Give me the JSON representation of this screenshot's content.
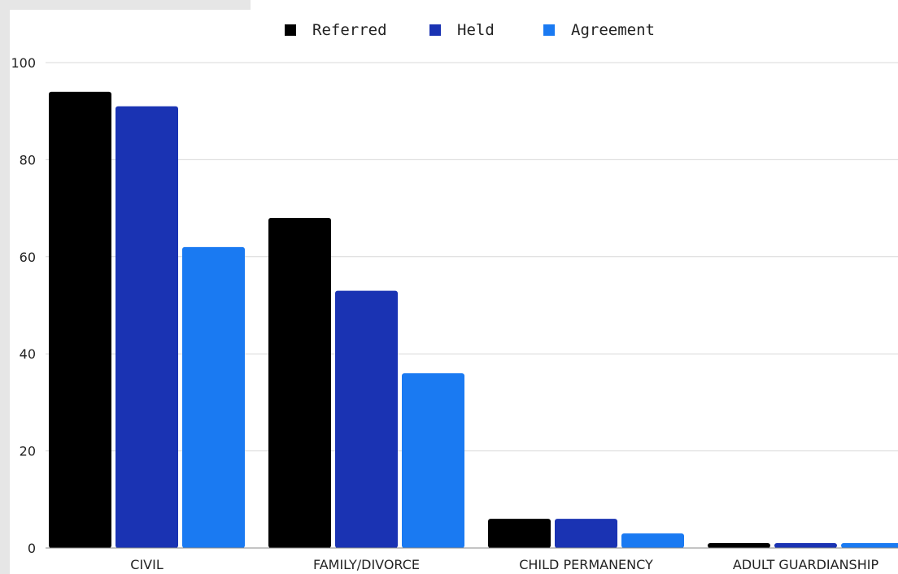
{
  "colors": {
    "referred": "#000000",
    "held": "#1a33b3",
    "agreement": "#1a7af2",
    "grid": "#d9d9d9",
    "axis": "#888888"
  },
  "chart_data": {
    "type": "bar",
    "categories": [
      "CIVIL",
      "FAMILY/DIVORCE",
      "CHILD PERMANENCY",
      "ADULT GUARDIANSHIP"
    ],
    "series": [
      {
        "name": "Referred",
        "color": "#000000",
        "values": [
          94,
          68,
          6,
          1
        ]
      },
      {
        "name": "Held",
        "color": "#1a33b3",
        "values": [
          91,
          53,
          6,
          1
        ]
      },
      {
        "name": "Agreement",
        "color": "#1a7af2",
        "values": [
          62,
          36,
          3,
          1
        ]
      }
    ],
    "title": "",
    "xlabel": "",
    "ylabel": "",
    "ylim": [
      0,
      100
    ],
    "yticks": [
      0,
      20,
      40,
      60,
      80,
      100
    ],
    "grid": true,
    "legend": "top-center"
  }
}
